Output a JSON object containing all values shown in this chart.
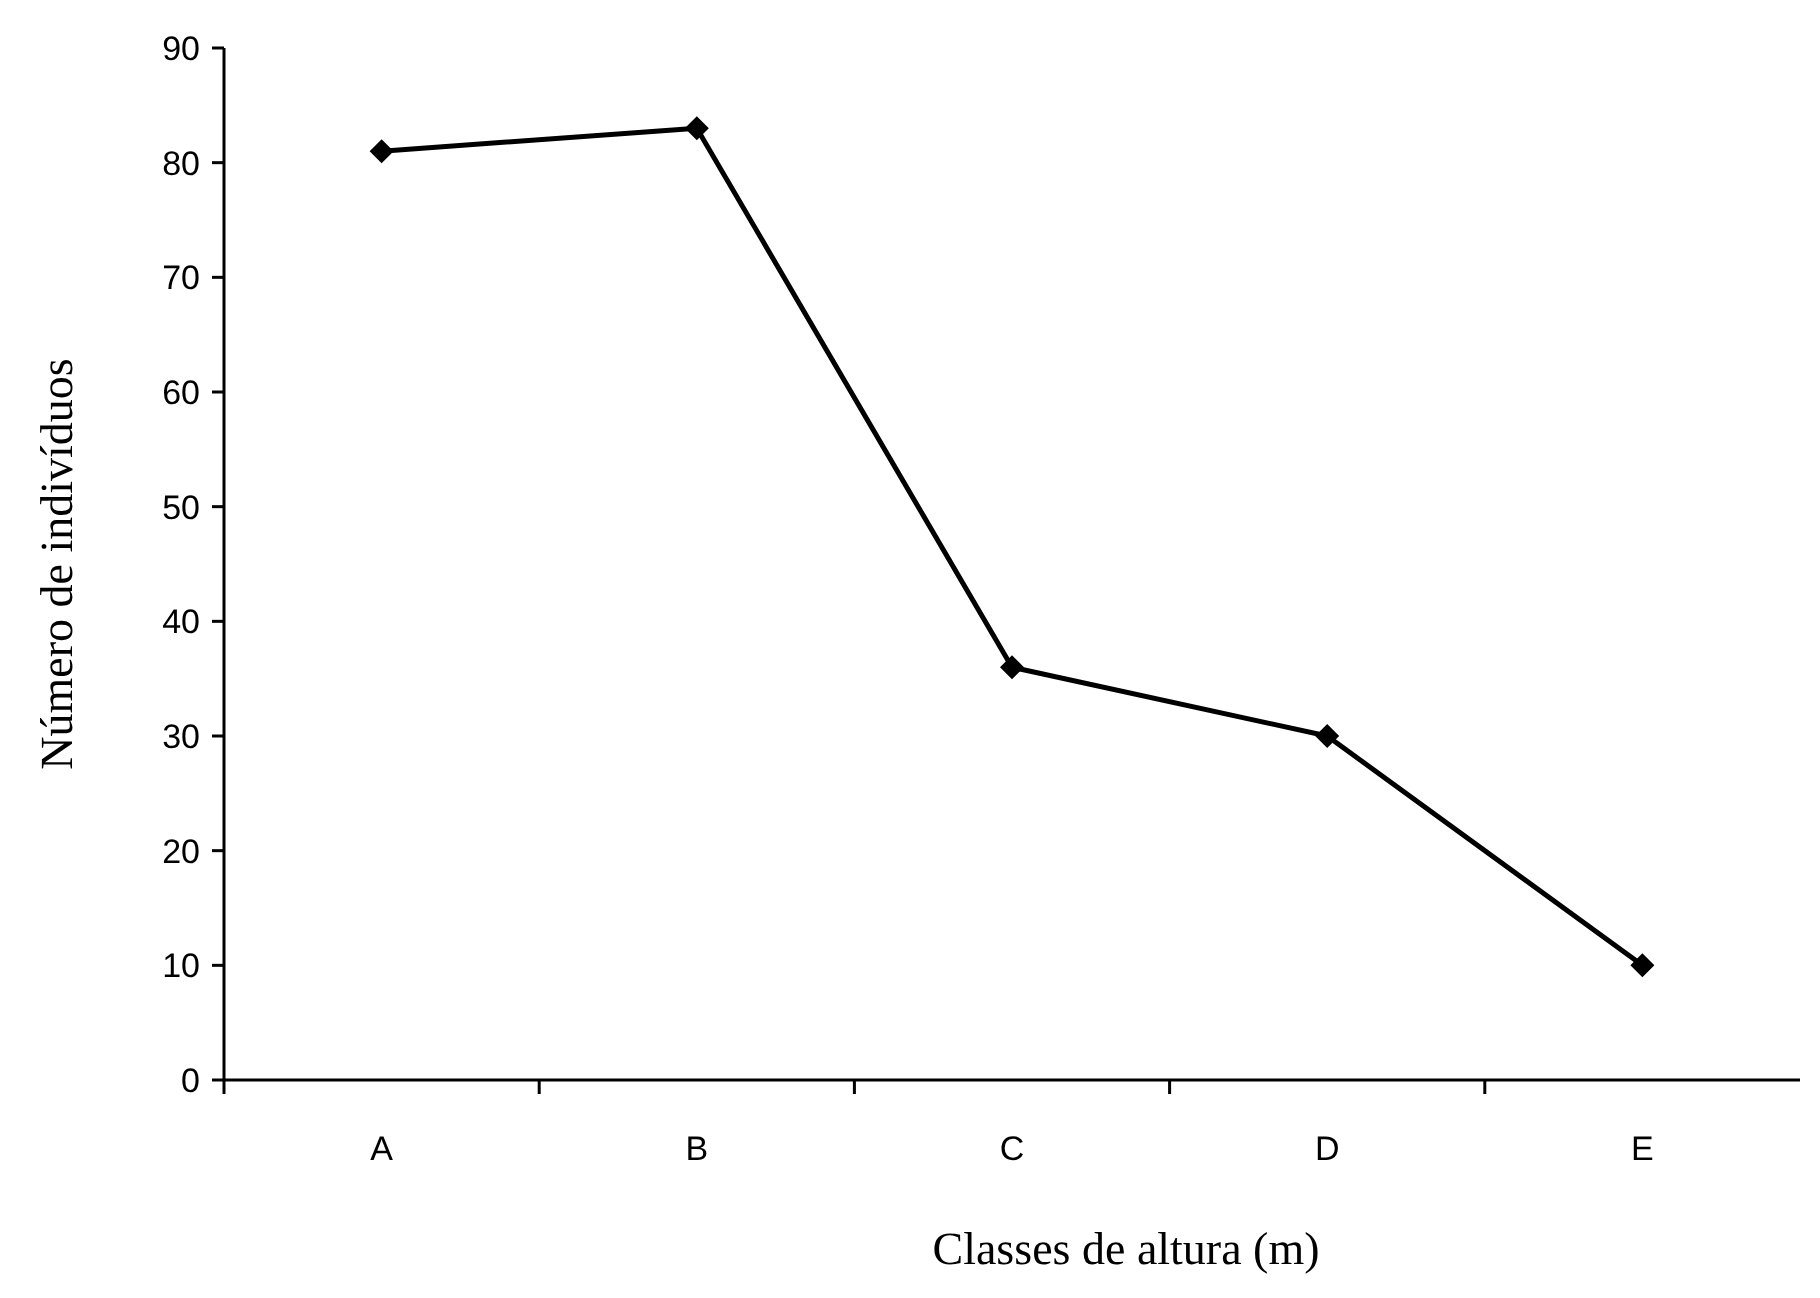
{
  "chart_data": {
    "type": "line",
    "xlabel": "Classes de altura (m)",
    "ylabel": "Número de indivíduos",
    "categories": [
      "A",
      "B",
      "C",
      "D",
      "E"
    ],
    "series": [
      {
        "color": "#000000",
        "values": [
          81,
          83,
          36,
          30,
          10
        ]
      }
    ],
    "ylim": [
      0,
      90
    ],
    "yticks": [
      0,
      10,
      20,
      30,
      40,
      50,
      60,
      70,
      80,
      90
    ],
    "marker": "diamond",
    "line_style": "solid"
  }
}
